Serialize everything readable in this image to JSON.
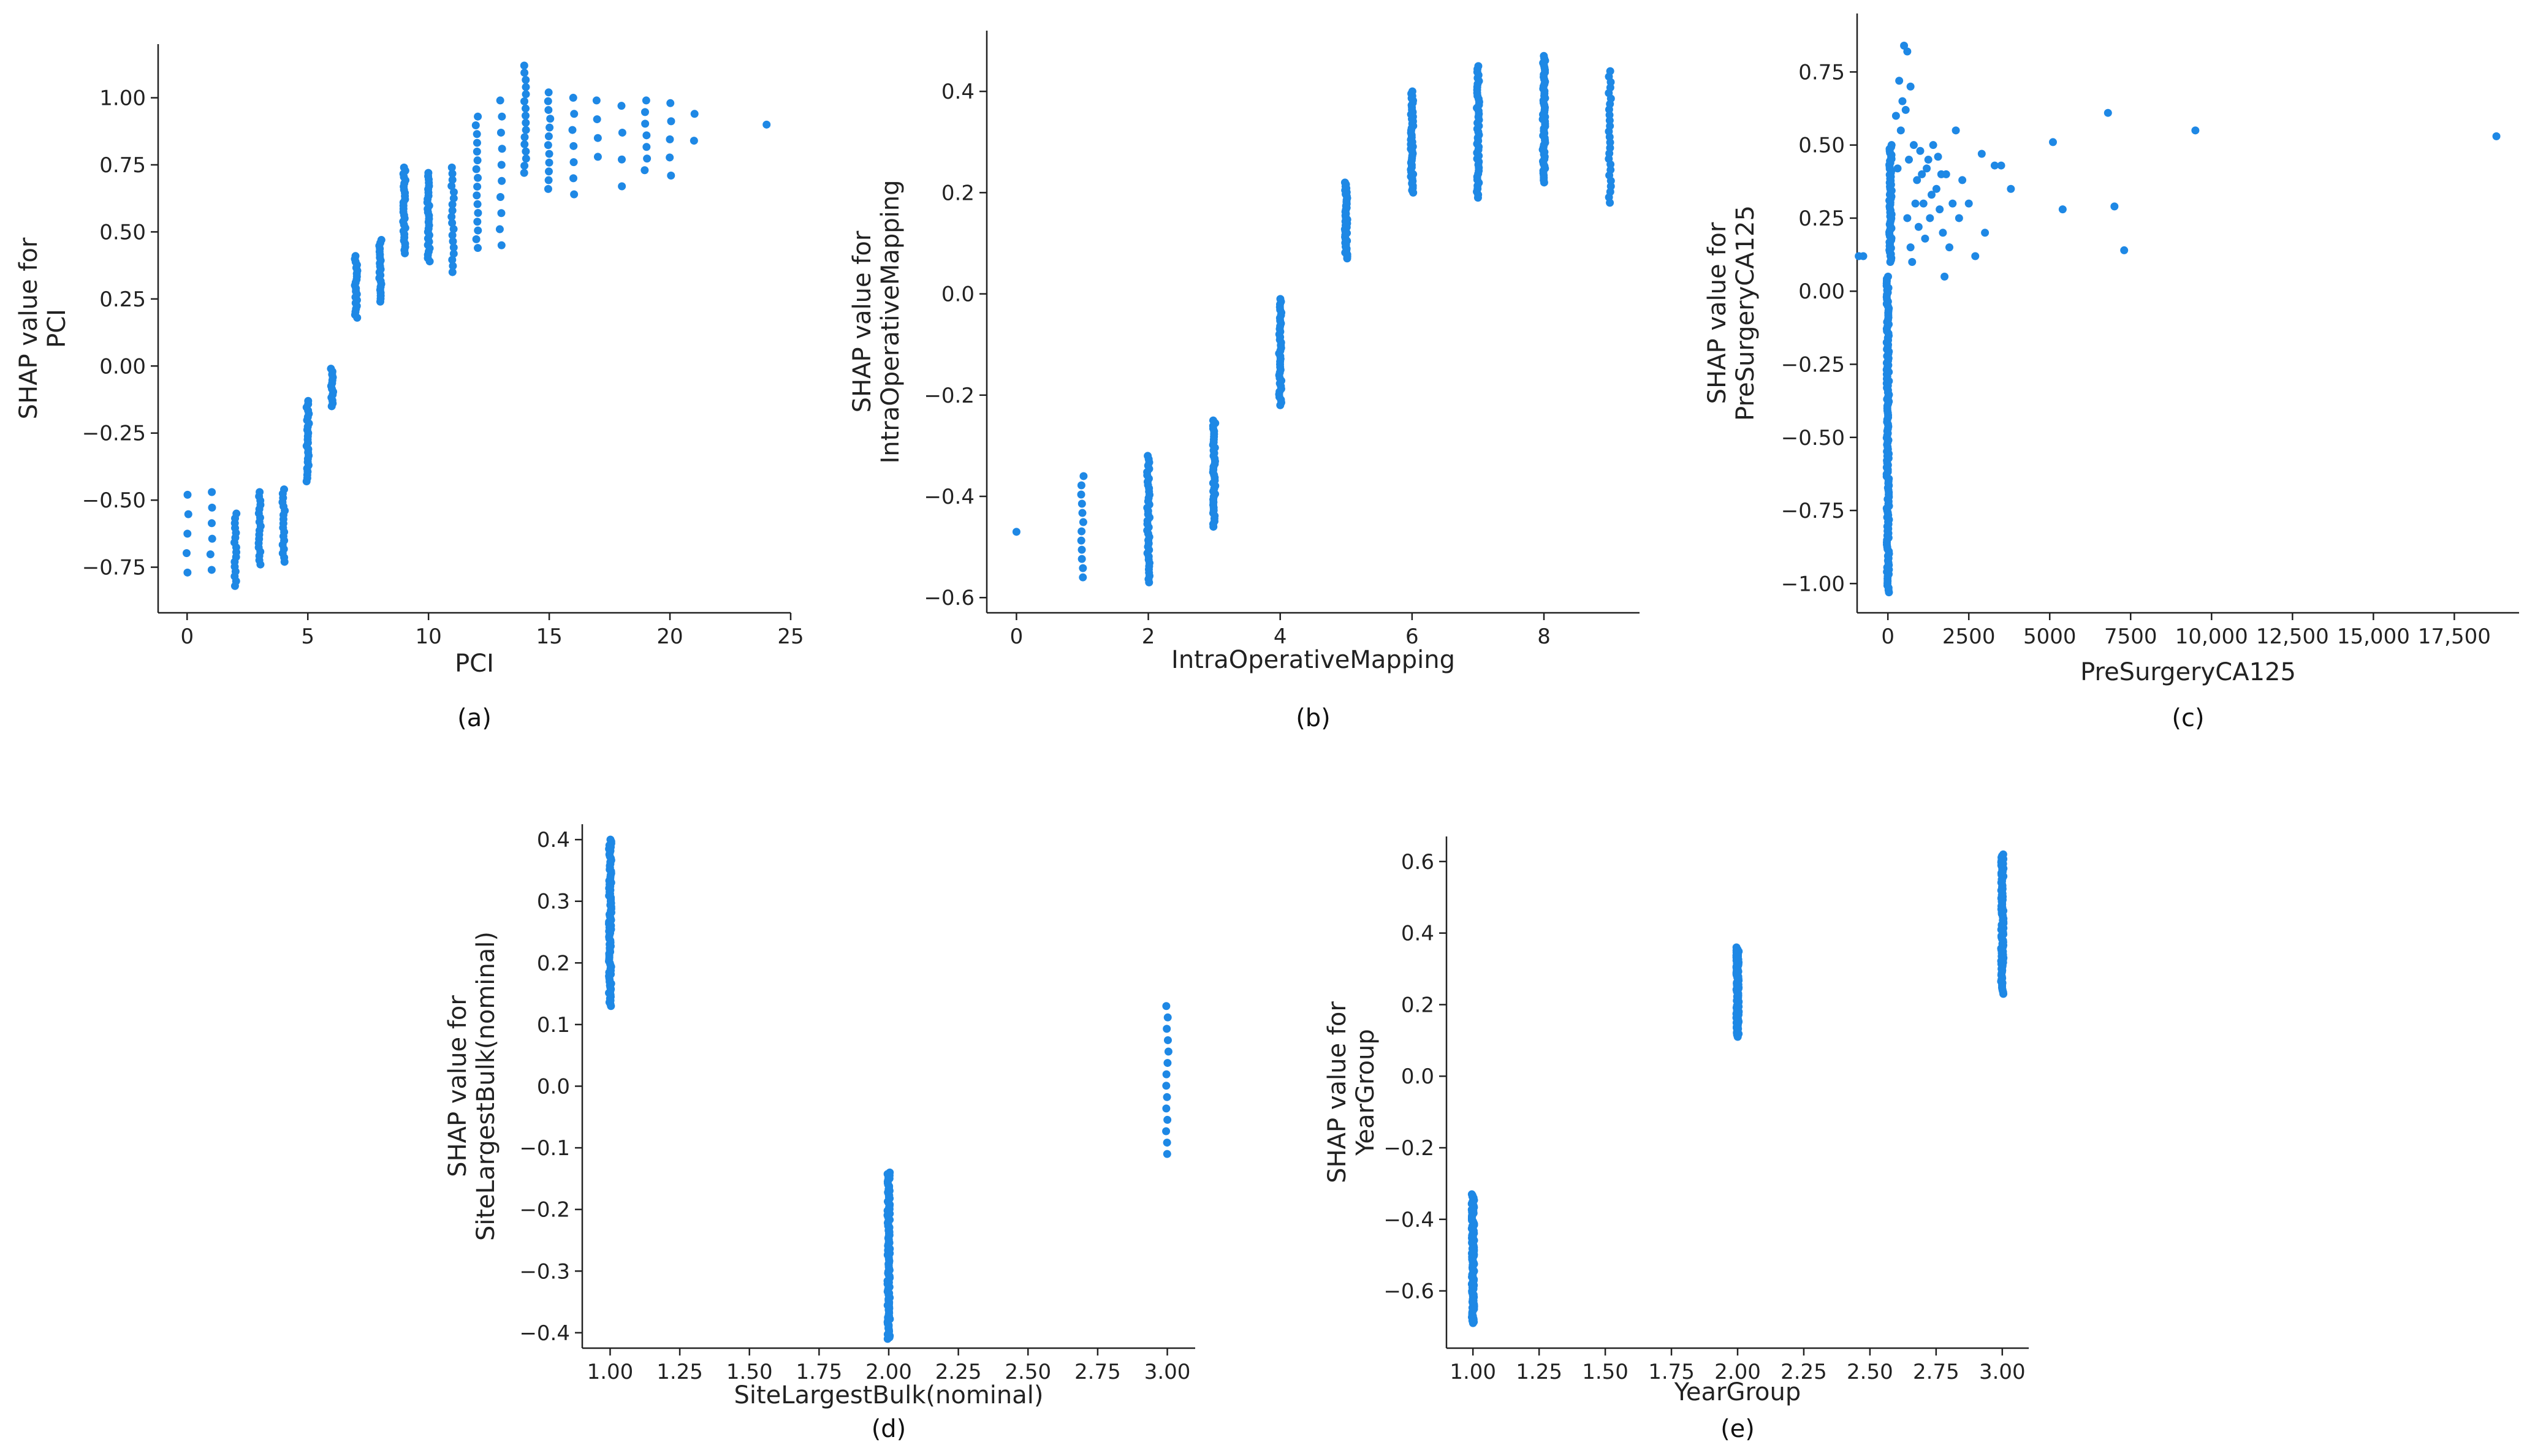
{
  "point_color": "#1E88E5",
  "chart_data": [
    {
      "type": "scatter",
      "caption": "(a)",
      "xlabel": "PCI",
      "ylabel_lines": [
        "SHAP value for",
        "PCI"
      ],
      "xlim": [
        -1.2,
        25
      ],
      "ylim": [
        -0.92,
        1.2
      ],
      "xticks": [
        0,
        5,
        10,
        15,
        20,
        25
      ],
      "xtick_labels": [
        "0",
        "5",
        "10",
        "15",
        "20",
        "25"
      ],
      "yticks": [
        -0.75,
        -0.5,
        -0.25,
        0.0,
        0.25,
        0.5,
        0.75,
        1.0
      ],
      "ytick_labels": [
        "−0.75",
        "−0.50",
        "−0.25",
        "0.00",
        "0.25",
        "0.50",
        "0.75",
        "1.00"
      ],
      "strips": [
        {
          "x": 0,
          "min": -0.77,
          "max": -0.48,
          "n": 5
        },
        {
          "x": 1,
          "min": -0.76,
          "max": -0.47,
          "n": 6
        },
        {
          "x": 2,
          "min": -0.82,
          "max": -0.55,
          "n": 16
        },
        {
          "x": 3,
          "min": -0.74,
          "max": -0.47,
          "n": 18
        },
        {
          "x": 4,
          "min": -0.73,
          "max": -0.46,
          "n": 18
        },
        {
          "x": 5,
          "min": -0.43,
          "max": -0.13,
          "n": 26
        },
        {
          "x": 6,
          "min": -0.15,
          "max": -0.01,
          "n": 14
        },
        {
          "x": 7,
          "min": 0.18,
          "max": 0.41,
          "n": 22
        },
        {
          "x": 8,
          "min": 0.24,
          "max": 0.47,
          "n": 22
        },
        {
          "x": 9,
          "min": 0.42,
          "max": 0.74,
          "n": 28
        },
        {
          "x": 10,
          "min": 0.39,
          "max": 0.72,
          "n": 28
        },
        {
          "x": 11,
          "min": 0.35,
          "max": 0.74,
          "n": 18
        },
        {
          "x": 12,
          "min": 0.44,
          "max": 0.93,
          "n": 16
        },
        {
          "x": 13,
          "min": 0.45,
          "max": 0.99,
          "n": 10
        },
        {
          "x": 14,
          "min": 0.72,
          "max": 1.12,
          "n": 16
        },
        {
          "x": 15,
          "min": 0.66,
          "max": 1.02,
          "n": 12
        },
        {
          "x": 16,
          "min": 0.64,
          "max": 1.0,
          "n": 7
        },
        {
          "x": 17,
          "min": 0.78,
          "max": 0.99,
          "n": 4
        },
        {
          "x": 18,
          "min": 0.67,
          "max": 0.97,
          "n": 4
        },
        {
          "x": 19,
          "min": 0.73,
          "max": 0.99,
          "n": 7
        },
        {
          "x": 20,
          "min": 0.71,
          "max": 0.98,
          "n": 5
        },
        {
          "x": 21,
          "min": 0.84,
          "max": 0.94,
          "n": 2
        },
        {
          "x": 24,
          "min": 0.9,
          "max": 0.9,
          "n": 1
        }
      ]
    },
    {
      "type": "scatter",
      "caption": "(b)",
      "xlabel": "IntraOperativeMapping",
      "ylabel_lines": [
        "SHAP value for",
        "IntraOperativeMapping"
      ],
      "xlim": [
        -0.45,
        9.45
      ],
      "ylim": [
        -0.63,
        0.52
      ],
      "xticks": [
        0,
        2,
        4,
        6,
        8
      ],
      "xtick_labels": [
        "0",
        "2",
        "4",
        "6",
        "8"
      ],
      "yticks": [
        -0.6,
        -0.4,
        -0.2,
        0.0,
        0.2,
        0.4
      ],
      "ytick_labels": [
        "−0.6",
        "−0.4",
        "−0.2",
        "0.0",
        "0.2",
        "0.4"
      ],
      "strips": [
        {
          "x": 0,
          "min": -0.47,
          "max": -0.47,
          "n": 1
        },
        {
          "x": 1,
          "min": -0.56,
          "max": -0.36,
          "n": 12
        },
        {
          "x": 2,
          "min": -0.57,
          "max": -0.32,
          "n": 40
        },
        {
          "x": 3,
          "min": -0.46,
          "max": -0.25,
          "n": 40
        },
        {
          "x": 4,
          "min": -0.22,
          "max": -0.01,
          "n": 40
        },
        {
          "x": 5,
          "min": 0.07,
          "max": 0.22,
          "n": 40
        },
        {
          "x": 6,
          "min": 0.2,
          "max": 0.4,
          "n": 45
        },
        {
          "x": 7,
          "min": 0.19,
          "max": 0.45,
          "n": 45
        },
        {
          "x": 8,
          "min": 0.22,
          "max": 0.47,
          "n": 55
        },
        {
          "x": 9,
          "min": 0.18,
          "max": 0.44,
          "n": 25
        }
      ]
    },
    {
      "type": "scatter",
      "caption": "(c)",
      "xlabel": "PreSurgeryCA125",
      "ylabel_lines": [
        "SHAP value for",
        "PreSurgeryCA125"
      ],
      "xlim": [
        -950,
        19500
      ],
      "ylim": [
        -1.1,
        0.95
      ],
      "xticks": [
        0,
        2500,
        5000,
        7500,
        10000,
        12500,
        15000,
        17500
      ],
      "xtick_labels": [
        "0",
        "2500",
        "5000",
        "7500",
        "10,000",
        "12,500",
        "15,000",
        "17,500"
      ],
      "yticks": [
        -1.0,
        -0.75,
        -0.5,
        -0.25,
        0.0,
        0.25,
        0.5,
        0.75
      ],
      "ytick_labels": [
        "−1.00",
        "−0.75",
        "−0.50",
        "−0.25",
        "0.00",
        "0.25",
        "0.50",
        "0.75"
      ],
      "strips": [
        {
          "x": 0,
          "min": -1.03,
          "max": 0.05,
          "n": 140
        },
        {
          "x": 80,
          "min": 0.1,
          "max": 0.5,
          "n": 60
        }
      ],
      "points": [
        [
          -900,
          0.12
        ],
        [
          -760,
          0.12
        ],
        [
          500,
          0.84
        ],
        [
          600,
          0.82
        ],
        [
          350,
          0.72
        ],
        [
          450,
          0.65
        ],
        [
          700,
          0.7
        ],
        [
          250,
          0.6
        ],
        [
          400,
          0.55
        ],
        [
          550,
          0.62
        ],
        [
          800,
          0.5
        ],
        [
          650,
          0.45
        ],
        [
          300,
          0.42
        ],
        [
          900,
          0.38
        ],
        [
          1000,
          0.48
        ],
        [
          1100,
          0.3
        ],
        [
          1200,
          0.42
        ],
        [
          1300,
          0.25
        ],
        [
          1400,
          0.5
        ],
        [
          1500,
          0.35
        ],
        [
          1600,
          0.28
        ],
        [
          1700,
          0.2
        ],
        [
          1800,
          0.4
        ],
        [
          1900,
          0.15
        ],
        [
          2000,
          0.3
        ],
        [
          2100,
          0.55
        ],
        [
          2300,
          0.38
        ],
        [
          2500,
          0.3
        ],
        [
          750,
          0.1
        ],
        [
          950,
          0.22
        ],
        [
          1150,
          0.18
        ],
        [
          1350,
          0.33
        ],
        [
          1550,
          0.46
        ],
        [
          1750,
          0.05
        ],
        [
          2900,
          0.47
        ],
        [
          3000,
          0.2
        ],
        [
          3300,
          0.43
        ],
        [
          3500,
          0.43
        ],
        [
          3800,
          0.35
        ],
        [
          5100,
          0.51
        ],
        [
          5400,
          0.28
        ],
        [
          6800,
          0.61
        ],
        [
          7000,
          0.29
        ],
        [
          7300,
          0.14
        ],
        [
          9500,
          0.55
        ],
        [
          18800,
          0.53
        ],
        [
          2200,
          0.25
        ],
        [
          2700,
          0.12
        ],
        [
          1650,
          0.4
        ],
        [
          1250,
          0.45
        ],
        [
          850,
          0.3
        ],
        [
          600,
          0.25
        ],
        [
          700,
          0.15
        ],
        [
          1050,
          0.4
        ]
      ]
    },
    {
      "type": "scatter",
      "caption": "(d)",
      "xlabel": "SiteLargestBulk(nominal)",
      "ylabel_lines": [
        "SHAP value for",
        "SiteLargestBulk(nominal)"
      ],
      "xlim": [
        0.9,
        3.1
      ],
      "ylim": [
        -0.425,
        0.425
      ],
      "xticks": [
        1.0,
        1.25,
        1.5,
        1.75,
        2.0,
        2.25,
        2.5,
        2.75,
        3.0
      ],
      "xtick_labels": [
        "1.00",
        "1.25",
        "1.50",
        "1.75",
        "2.00",
        "2.25",
        "2.50",
        "2.75",
        "3.00"
      ],
      "yticks": [
        -0.4,
        -0.3,
        -0.2,
        -0.1,
        0.0,
        0.1,
        0.2,
        0.3,
        0.4
      ],
      "ytick_labels": [
        "−0.4",
        "−0.3",
        "−0.2",
        "−0.1",
        "0.0",
        "0.1",
        "0.2",
        "0.3",
        "0.4"
      ],
      "strips": [
        {
          "x": 1.0,
          "min": 0.13,
          "max": 0.4,
          "n": 90
        },
        {
          "x": 2.0,
          "min": -0.41,
          "max": -0.14,
          "n": 110
        },
        {
          "x": 3.0,
          "min": -0.11,
          "max": 0.13,
          "n": 14
        }
      ]
    },
    {
      "type": "scatter",
      "caption": "(e)",
      "xlabel": "YearGroup",
      "ylabel_lines": [
        "SHAP value for",
        "YearGroup"
      ],
      "xlim": [
        0.9,
        3.1
      ],
      "ylim": [
        -0.76,
        0.67
      ],
      "xticks": [
        1.0,
        1.25,
        1.5,
        1.75,
        2.0,
        2.25,
        2.5,
        2.75,
        3.0
      ],
      "xtick_labels": [
        "1.00",
        "1.25",
        "1.50",
        "1.75",
        "2.00",
        "2.25",
        "2.50",
        "2.75",
        "3.00"
      ],
      "yticks": [
        -0.6,
        -0.4,
        -0.2,
        0.0,
        0.2,
        0.4,
        0.6
      ],
      "ytick_labels": [
        "−0.6",
        "−0.4",
        "−0.2",
        "0.0",
        "0.2",
        "0.4",
        "0.6"
      ],
      "strips": [
        {
          "x": 1.0,
          "min": -0.69,
          "max": -0.33,
          "n": 110
        },
        {
          "x": 2.0,
          "min": 0.11,
          "max": 0.36,
          "n": 90
        },
        {
          "x": 3.0,
          "min": 0.23,
          "max": 0.62,
          "n": 90
        }
      ]
    }
  ]
}
